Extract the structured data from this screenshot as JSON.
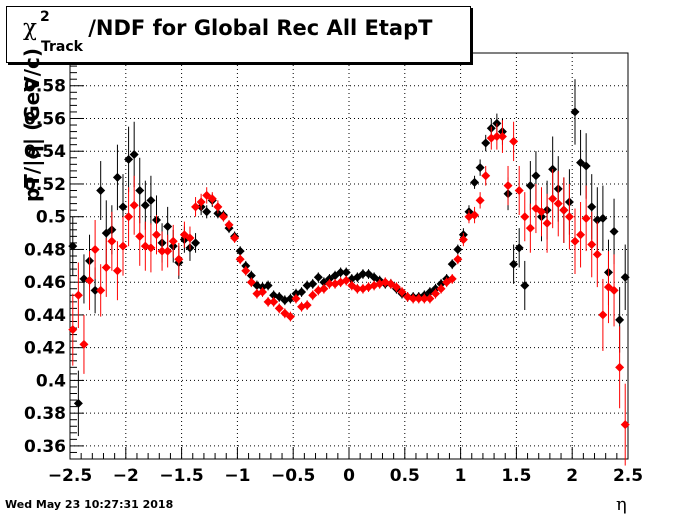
{
  "title": {
    "symbol": "χ",
    "superscript": "2",
    "subscript": "Track",
    "text": "/NDF for Global Rec All EtapT"
  },
  "ylabel": "pT/|q| (GeV/c)",
  "xlabel": "η",
  "timestamp": "Wed May 23 10:27:31 2018",
  "colors": {
    "series_black": "#000000",
    "series_red": "#ff0000",
    "grid": "#000000"
  },
  "chart_data": {
    "type": "scatter",
    "title": "χ²Track/NDF for Global Rec All EtapT",
    "xlabel": "η",
    "ylabel": "pT/|q| (GeV/c)",
    "xlim": [
      -2.5,
      2.5
    ],
    "ylim": [
      0.352,
      0.6
    ],
    "xticks": [
      -2.5,
      -2,
      -1.5,
      -1,
      -0.5,
      0,
      0.5,
      1,
      1.5,
      2,
      2.5
    ],
    "xtick_labels": [
      "−2.5",
      "−2",
      "−1.5",
      "−1",
      "−0.5",
      "0",
      "0.5",
      "1",
      "1.5",
      "2",
      "2.5"
    ],
    "yticks": [
      0.36,
      0.38,
      0.4,
      0.42,
      0.44,
      0.46,
      0.48,
      0.5,
      0.52,
      0.54,
      0.56,
      0.58
    ],
    "ytick_labels": [
      "0.36",
      "0.38",
      "0.4",
      "0.42",
      "0.44",
      "0.46",
      "0.48",
      "0.5",
      "0.52",
      "0.54",
      "0.56",
      "0.58"
    ],
    "grid": true,
    "marker": "diamond",
    "series": [
      {
        "color": "black",
        "points": [
          [
            -2.475,
            0.482,
            0.018
          ],
          [
            -2.425,
            0.386,
            0.02
          ],
          [
            -2.375,
            0.462,
            0.015
          ],
          [
            -2.325,
            0.473,
            0.016
          ],
          [
            -2.275,
            0.455,
            0.014
          ],
          [
            -2.225,
            0.516,
            0.018
          ],
          [
            -2.175,
            0.49,
            0.02
          ],
          [
            -2.125,
            0.492,
            0.015
          ],
          [
            -2.075,
            0.524,
            0.02
          ],
          [
            -2.025,
            0.506,
            0.02
          ],
          [
            -1.975,
            0.535,
            0.02
          ],
          [
            -1.925,
            0.538,
            0.02
          ],
          [
            -1.875,
            0.516,
            0.02
          ],
          [
            -1.825,
            0.507,
            0.015
          ],
          [
            -1.775,
            0.51,
            0.015
          ],
          [
            -1.725,
            0.498,
            0.015
          ],
          [
            -1.675,
            0.484,
            0.012
          ],
          [
            -1.625,
            0.494,
            0.012
          ],
          [
            -1.575,
            0.482,
            0.01
          ],
          [
            -1.525,
            0.472,
            0.01
          ],
          [
            -1.475,
            0.486,
            0.008
          ],
          [
            -1.425,
            0.481,
            0.008
          ],
          [
            -1.375,
            0.484,
            0.006
          ],
          [
            -1.325,
            0.506,
            0.005
          ],
          [
            -1.275,
            0.503,
            0.004
          ],
          [
            -1.225,
            0.51,
            0.004
          ],
          [
            -1.175,
            0.502,
            0.003
          ],
          [
            -1.125,
            0.501,
            0.003
          ],
          [
            -1.075,
            0.493,
            0.003
          ],
          [
            -1.025,
            0.488,
            0.003
          ],
          [
            -0.975,
            0.479,
            0.003
          ],
          [
            -0.925,
            0.47,
            0.003
          ],
          [
            -0.875,
            0.464,
            0.003
          ],
          [
            -0.825,
            0.458,
            0.003
          ],
          [
            -0.775,
            0.457,
            0.003
          ],
          [
            -0.725,
            0.458,
            0.003
          ],
          [
            -0.675,
            0.452,
            0.003
          ],
          [
            -0.625,
            0.451,
            0.003
          ],
          [
            -0.575,
            0.449,
            0.003
          ],
          [
            -0.525,
            0.45,
            0.003
          ],
          [
            -0.475,
            0.453,
            0.003
          ],
          [
            -0.425,
            0.454,
            0.003
          ],
          [
            -0.375,
            0.458,
            0.003
          ],
          [
            -0.325,
            0.459,
            0.003
          ],
          [
            -0.275,
            0.463,
            0.003
          ],
          [
            -0.225,
            0.46,
            0.003
          ],
          [
            -0.175,
            0.462,
            0.003
          ],
          [
            -0.125,
            0.464,
            0.003
          ],
          [
            -0.075,
            0.466,
            0.003
          ],
          [
            -0.025,
            0.466,
            0.003
          ],
          [
            0.025,
            0.462,
            0.003
          ],
          [
            0.075,
            0.463,
            0.003
          ],
          [
            0.125,
            0.465,
            0.003
          ],
          [
            0.175,
            0.465,
            0.003
          ],
          [
            0.225,
            0.463,
            0.003
          ],
          [
            0.275,
            0.461,
            0.003
          ],
          [
            0.325,
            0.459,
            0.003
          ],
          [
            0.375,
            0.459,
            0.003
          ],
          [
            0.425,
            0.456,
            0.003
          ],
          [
            0.475,
            0.453,
            0.003
          ],
          [
            0.525,
            0.451,
            0.003
          ],
          [
            0.575,
            0.451,
            0.003
          ],
          [
            0.625,
            0.451,
            0.003
          ],
          [
            0.675,
            0.452,
            0.003
          ],
          [
            0.725,
            0.454,
            0.003
          ],
          [
            0.775,
            0.456,
            0.003
          ],
          [
            0.825,
            0.459,
            0.003
          ],
          [
            0.875,
            0.462,
            0.003
          ],
          [
            0.925,
            0.471,
            0.003
          ],
          [
            0.975,
            0.48,
            0.003
          ],
          [
            1.025,
            0.489,
            0.004
          ],
          [
            1.075,
            0.503,
            0.004
          ],
          [
            1.125,
            0.521,
            0.004
          ],
          [
            1.175,
            0.53,
            0.005
          ],
          [
            1.225,
            0.545,
            0.005
          ],
          [
            1.275,
            0.554,
            0.006
          ],
          [
            1.325,
            0.557,
            0.006
          ],
          [
            1.375,
            0.552,
            0.008
          ],
          [
            1.425,
            0.514,
            0.01
          ],
          [
            1.475,
            0.471,
            0.012
          ],
          [
            1.525,
            0.481,
            0.012
          ],
          [
            1.575,
            0.458,
            0.015
          ],
          [
            1.625,
            0.519,
            0.015
          ],
          [
            1.675,
            0.525,
            0.015
          ],
          [
            1.725,
            0.5,
            0.015
          ],
          [
            1.775,
            0.504,
            0.018
          ],
          [
            1.825,
            0.529,
            0.02
          ],
          [
            1.875,
            0.517,
            0.02
          ],
          [
            1.925,
            0.504,
            0.02
          ],
          [
            1.975,
            0.509,
            0.02
          ],
          [
            2.025,
            0.564,
            0.02
          ],
          [
            2.075,
            0.533,
            0.02
          ],
          [
            2.125,
            0.531,
            0.02
          ],
          [
            2.175,
            0.506,
            0.02
          ],
          [
            2.225,
            0.498,
            0.02
          ],
          [
            2.275,
            0.499,
            0.02
          ],
          [
            2.325,
            0.466,
            0.02
          ],
          [
            2.375,
            0.491,
            0.02
          ],
          [
            2.425,
            0.437,
            0.02
          ],
          [
            2.475,
            0.463,
            0.02
          ]
        ]
      },
      {
        "color": "red",
        "points": [
          [
            -2.475,
            0.431,
            0.022
          ],
          [
            -2.425,
            0.452,
            0.02
          ],
          [
            -2.375,
            0.422,
            0.018
          ],
          [
            -2.325,
            0.461,
            0.018
          ],
          [
            -2.275,
            0.48,
            0.018
          ],
          [
            -2.225,
            0.455,
            0.016
          ],
          [
            -2.175,
            0.469,
            0.018
          ],
          [
            -2.125,
            0.485,
            0.018
          ],
          [
            -2.075,
            0.467,
            0.018
          ],
          [
            -2.025,
            0.482,
            0.018
          ],
          [
            -1.975,
            0.5,
            0.018
          ],
          [
            -1.925,
            0.507,
            0.018
          ],
          [
            -1.875,
            0.488,
            0.018
          ],
          [
            -1.825,
            0.482,
            0.015
          ],
          [
            -1.775,
            0.481,
            0.015
          ],
          [
            -1.725,
            0.489,
            0.012
          ],
          [
            -1.675,
            0.479,
            0.012
          ],
          [
            -1.625,
            0.479,
            0.01
          ],
          [
            -1.575,
            0.485,
            0.01
          ],
          [
            -1.525,
            0.474,
            0.01
          ],
          [
            -1.475,
            0.489,
            0.008
          ],
          [
            -1.425,
            0.487,
            0.007
          ],
          [
            -1.375,
            0.506,
            0.006
          ],
          [
            -1.325,
            0.509,
            0.005
          ],
          [
            -1.275,
            0.513,
            0.005
          ],
          [
            -1.225,
            0.511,
            0.004
          ],
          [
            -1.175,
            0.506,
            0.004
          ],
          [
            -1.125,
            0.5,
            0.003
          ],
          [
            -1.075,
            0.495,
            0.003
          ],
          [
            -1.025,
            0.487,
            0.003
          ],
          [
            -0.975,
            0.474,
            0.003
          ],
          [
            -0.925,
            0.467,
            0.003
          ],
          [
            -0.875,
            0.46,
            0.003
          ],
          [
            -0.825,
            0.453,
            0.003
          ],
          [
            -0.775,
            0.454,
            0.003
          ],
          [
            -0.725,
            0.448,
            0.003
          ],
          [
            -0.675,
            0.448,
            0.003
          ],
          [
            -0.625,
            0.444,
            0.003
          ],
          [
            -0.575,
            0.441,
            0.003
          ],
          [
            -0.525,
            0.439,
            0.003
          ],
          [
            -0.475,
            0.45,
            0.003
          ],
          [
            -0.425,
            0.445,
            0.003
          ],
          [
            -0.375,
            0.446,
            0.003
          ],
          [
            -0.325,
            0.452,
            0.003
          ],
          [
            -0.275,
            0.455,
            0.003
          ],
          [
            -0.225,
            0.456,
            0.003
          ],
          [
            -0.175,
            0.459,
            0.003
          ],
          [
            -0.125,
            0.459,
            0.003
          ],
          [
            -0.075,
            0.46,
            0.003
          ],
          [
            -0.025,
            0.461,
            0.003
          ],
          [
            0.025,
            0.458,
            0.003
          ],
          [
            0.075,
            0.456,
            0.003
          ],
          [
            0.125,
            0.456,
            0.003
          ],
          [
            0.175,
            0.457,
            0.003
          ],
          [
            0.225,
            0.458,
            0.003
          ],
          [
            0.275,
            0.459,
            0.003
          ],
          [
            0.325,
            0.46,
            0.003
          ],
          [
            0.375,
            0.459,
            0.003
          ],
          [
            0.425,
            0.457,
            0.003
          ],
          [
            0.475,
            0.454,
            0.003
          ],
          [
            0.525,
            0.451,
            0.003
          ],
          [
            0.575,
            0.45,
            0.003
          ],
          [
            0.625,
            0.45,
            0.003
          ],
          [
            0.675,
            0.45,
            0.003
          ],
          [
            0.725,
            0.45,
            0.003
          ],
          [
            0.775,
            0.453,
            0.003
          ],
          [
            0.825,
            0.456,
            0.003
          ],
          [
            0.875,
            0.46,
            0.003
          ],
          [
            0.925,
            0.462,
            0.003
          ],
          [
            0.975,
            0.474,
            0.003
          ],
          [
            1.025,
            0.486,
            0.004
          ],
          [
            1.075,
            0.5,
            0.004
          ],
          [
            1.125,
            0.501,
            0.005
          ],
          [
            1.175,
            0.51,
            0.005
          ],
          [
            1.225,
            0.525,
            0.006
          ],
          [
            1.275,
            0.548,
            0.007
          ],
          [
            1.325,
            0.549,
            0.008
          ],
          [
            1.375,
            0.549,
            0.01
          ],
          [
            1.425,
            0.519,
            0.012
          ],
          [
            1.475,
            0.546,
            0.012
          ],
          [
            1.525,
            0.516,
            0.015
          ],
          [
            1.575,
            0.5,
            0.015
          ],
          [
            1.625,
            0.493,
            0.015
          ],
          [
            1.675,
            0.505,
            0.015
          ],
          [
            1.725,
            0.503,
            0.015
          ],
          [
            1.775,
            0.496,
            0.018
          ],
          [
            1.825,
            0.511,
            0.018
          ],
          [
            1.875,
            0.508,
            0.02
          ],
          [
            1.925,
            0.504,
            0.02
          ],
          [
            1.975,
            0.5,
            0.02
          ],
          [
            2.025,
            0.485,
            0.02
          ],
          [
            2.075,
            0.489,
            0.02
          ],
          [
            2.125,
            0.499,
            0.02
          ],
          [
            2.175,
            0.483,
            0.02
          ],
          [
            2.225,
            0.477,
            0.02
          ],
          [
            2.275,
            0.44,
            0.022
          ],
          [
            2.325,
            0.457,
            0.022
          ],
          [
            2.375,
            0.455,
            0.022
          ],
          [
            2.425,
            0.408,
            0.025
          ],
          [
            2.475,
            0.373,
            0.025
          ]
        ]
      }
    ]
  }
}
